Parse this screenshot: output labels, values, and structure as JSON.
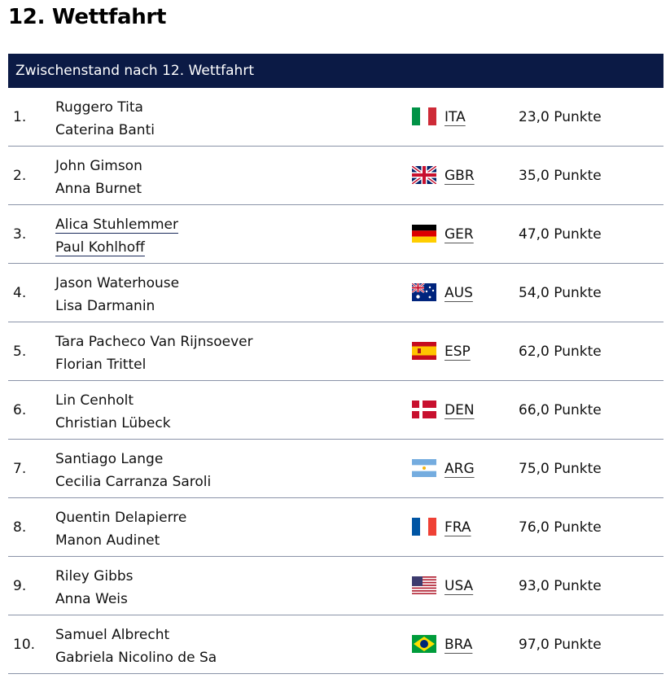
{
  "page_title": "12. Wettfahrt",
  "table_header": "Zwischenstand nach 12. Wettfahrt",
  "rows": [
    {
      "rank": "1.",
      "name1": "Ruggero Tita",
      "name2": "Caterina Banti",
      "country": "ITA",
      "flag": "italy-flag-icon",
      "points": "23,0 Punkte"
    },
    {
      "rank": "2.",
      "name1": "John Gimson",
      "name2": "Anna Burnet",
      "country": "GBR",
      "flag": "uk-flag-icon",
      "points": "35,0 Punkte"
    },
    {
      "rank": "3.",
      "name1": "Alica Stuhlemmer",
      "name2": "Paul Kohlhoff",
      "country": "GER",
      "flag": "germany-flag-icon",
      "points": "47,0 Punkte"
    },
    {
      "rank": "4.",
      "name1": "Jason Waterhouse",
      "name2": "Lisa Darmanin",
      "country": "AUS",
      "flag": "australia-flag-icon",
      "points": "54,0 Punkte"
    },
    {
      "rank": "5.",
      "name1": "Tara Pacheco Van Rijnsoever",
      "name2": "Florian Trittel",
      "country": "ESP",
      "flag": "spain-flag-icon",
      "points": "62,0 Punkte"
    },
    {
      "rank": "6.",
      "name1": "Lin Cenholt",
      "name2": "Christian Lübeck",
      "country": "DEN",
      "flag": "denmark-flag-icon",
      "points": "66,0 Punkte"
    },
    {
      "rank": "7.",
      "name1": "Santiago Lange",
      "name2": "Cecilia Carranza Saroli",
      "country": "ARG",
      "flag": "argentina-flag-icon",
      "points": "75,0 Punkte"
    },
    {
      "rank": "8.",
      "name1": "Quentin Delapierre",
      "name2": "Manon Audinet",
      "country": "FRA",
      "flag": "france-flag-icon",
      "points": "76,0 Punkte"
    },
    {
      "rank": "9.",
      "name1": "Riley Gibbs",
      "name2": "Anna Weis",
      "country": "USA",
      "flag": "usa-flag-icon",
      "points": "93,0 Punkte"
    },
    {
      "rank": "10.",
      "name1": "Samuel Albrecht",
      "name2": "Gabriela Nicolino de Sa",
      "country": "BRA",
      "flag": "brazil-flag-icon",
      "points": "97,0 Punkte"
    }
  ],
  "colors": {
    "header_bg": "#0b1a45",
    "divider": "#8a93a8"
  }
}
